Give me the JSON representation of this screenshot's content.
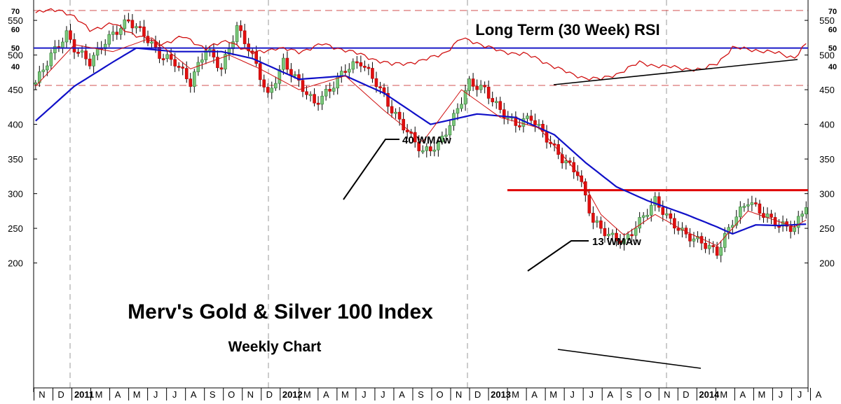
{
  "chart_data": {
    "type": "candlestick",
    "title": "Merv's Gold & Silver 100 Index",
    "subtitle": "Weekly Chart",
    "rsi_title": "Long Term (30 Week) RSI",
    "annotations": {
      "wma40": "40 WMAw",
      "wma13": "13 WMAw"
    },
    "colors": {
      "up": "#7bc67b",
      "down": "#e11010",
      "wma40": "#1010c8",
      "wma13": "#d01010",
      "rsi": "#d01010",
      "midline": "#1a1ac8",
      "resistance": "#e00000"
    },
    "price_axis": {
      "ylim": [
        160,
        590
      ],
      "ticks": [
        200,
        250,
        300,
        350,
        400,
        450,
        500,
        550
      ]
    },
    "rsi_axis": {
      "ylim": [
        30,
        72
      ],
      "ticks": [
        40,
        50,
        60,
        70
      ]
    },
    "resistance_level": 305,
    "x_labels": [
      "N",
      "D",
      "2011",
      "M",
      "A",
      "M",
      "J",
      "J",
      "A",
      "S",
      "O",
      "N",
      "D",
      "2012",
      "M",
      "A",
      "M",
      "J",
      "J",
      "A",
      "S",
      "O",
      "N",
      "D",
      "2013",
      "M",
      "A",
      "M",
      "J",
      "J",
      "A",
      "S",
      "O",
      "N",
      "D",
      "2014",
      "M",
      "A",
      "M",
      "J",
      "J",
      "A"
    ],
    "price_keys": [
      [
        0,
        460
      ],
      [
        4,
        500
      ],
      [
        8,
        530
      ],
      [
        10,
        510
      ],
      [
        14,
        490
      ],
      [
        18,
        520
      ],
      [
        24,
        550
      ],
      [
        28,
        530
      ],
      [
        32,
        500
      ],
      [
        36,
        490
      ],
      [
        40,
        460
      ],
      [
        44,
        510
      ],
      [
        48,
        480
      ],
      [
        52,
        540
      ],
      [
        56,
        500
      ],
      [
        60,
        440
      ],
      [
        64,
        490
      ],
      [
        68,
        460
      ],
      [
        72,
        430
      ],
      [
        76,
        450
      ],
      [
        80,
        480
      ],
      [
        84,
        490
      ],
      [
        88,
        460
      ],
      [
        92,
        420
      ],
      [
        96,
        390
      ],
      [
        100,
        360
      ],
      [
        104,
        370
      ],
      [
        108,
        410
      ],
      [
        112,
        460
      ],
      [
        116,
        450
      ],
      [
        120,
        420
      ],
      [
        124,
        400
      ],
      [
        128,
        410
      ],
      [
        132,
        380
      ],
      [
        136,
        350
      ],
      [
        140,
        330
      ],
      [
        144,
        260
      ],
      [
        148,
        240
      ],
      [
        152,
        230
      ],
      [
        156,
        260
      ],
      [
        160,
        290
      ],
      [
        164,
        260
      ],
      [
        168,
        240
      ],
      [
        172,
        230
      ],
      [
        176,
        215
      ],
      [
        180,
        260
      ],
      [
        184,
        290
      ],
      [
        188,
        270
      ],
      [
        192,
        255
      ],
      [
        196,
        250
      ],
      [
        199,
        285
      ]
    ],
    "wma13_keys": [
      [
        0,
        455
      ],
      [
        10,
        515
      ],
      [
        20,
        505
      ],
      [
        30,
        525
      ],
      [
        40,
        480
      ],
      [
        50,
        500
      ],
      [
        58,
        480
      ],
      [
        68,
        450
      ],
      [
        80,
        470
      ],
      [
        90,
        420
      ],
      [
        100,
        375
      ],
      [
        110,
        450
      ],
      [
        120,
        410
      ],
      [
        130,
        395
      ],
      [
        140,
        330
      ],
      [
        146,
        270
      ],
      [
        152,
        240
      ],
      [
        160,
        270
      ],
      [
        168,
        245
      ],
      [
        176,
        225
      ],
      [
        184,
        275
      ],
      [
        196,
        252
      ],
      [
        199,
        262
      ]
    ],
    "wma40_keys": [
      [
        0,
        405
      ],
      [
        10,
        455
      ],
      [
        20,
        490
      ],
      [
        26,
        510
      ],
      [
        36,
        505
      ],
      [
        48,
        505
      ],
      [
        56,
        495
      ],
      [
        68,
        465
      ],
      [
        80,
        470
      ],
      [
        90,
        445
      ],
      [
        102,
        400
      ],
      [
        114,
        415
      ],
      [
        124,
        410
      ],
      [
        134,
        385
      ],
      [
        142,
        345
      ],
      [
        150,
        310
      ],
      [
        158,
        290
      ],
      [
        168,
        270
      ],
      [
        176,
        252
      ],
      [
        180,
        242
      ],
      [
        186,
        255
      ],
      [
        192,
        254
      ],
      [
        199,
        256
      ]
    ],
    "rsi_keys": [
      [
        0,
        69
      ],
      [
        6,
        71
      ],
      [
        9,
        68
      ],
      [
        14,
        60
      ],
      [
        20,
        63
      ],
      [
        26,
        57
      ],
      [
        32,
        52
      ],
      [
        38,
        56
      ],
      [
        44,
        50
      ],
      [
        50,
        54
      ],
      [
        56,
        47
      ],
      [
        62,
        50
      ],
      [
        68,
        48
      ],
      [
        74,
        52
      ],
      [
        80,
        49
      ],
      [
        86,
        45
      ],
      [
        92,
        41
      ],
      [
        100,
        43
      ],
      [
        106,
        48
      ],
      [
        110,
        55
      ],
      [
        114,
        53
      ],
      [
        120,
        48
      ],
      [
        126,
        47
      ],
      [
        132,
        42
      ],
      [
        138,
        36
      ],
      [
        142,
        34
      ],
      [
        146,
        33
      ],
      [
        150,
        36
      ],
      [
        156,
        42
      ],
      [
        162,
        40
      ],
      [
        168,
        39
      ],
      [
        172,
        38
      ],
      [
        176,
        42
      ],
      [
        180,
        50
      ],
      [
        186,
        49
      ],
      [
        192,
        47
      ],
      [
        196,
        45
      ],
      [
        199,
        52
      ]
    ]
  }
}
